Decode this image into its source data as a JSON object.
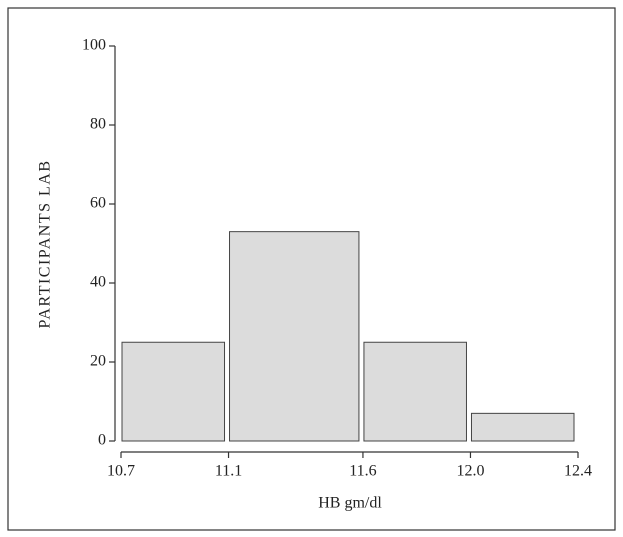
{
  "chart_data": {
    "type": "histogram",
    "x_label": "HB gm/dl",
    "y_label": "PARTICIPANTS LAB",
    "bins": [
      10.7,
      11.1,
      11.6,
      12.0,
      12.4
    ],
    "values": [
      25,
      53,
      25,
      7
    ],
    "color": "#dcdcdc",
    "xlim": [
      10.7,
      12.4
    ],
    "xticks": [
      10.7,
      11.1,
      11.6,
      {
        "value": 12.0,
        "label": "12.0"
      },
      12.4
    ],
    "ylim": [
      0,
      100
    ],
    "yticks": [
      0,
      20,
      40,
      60,
      80,
      100
    ]
  }
}
